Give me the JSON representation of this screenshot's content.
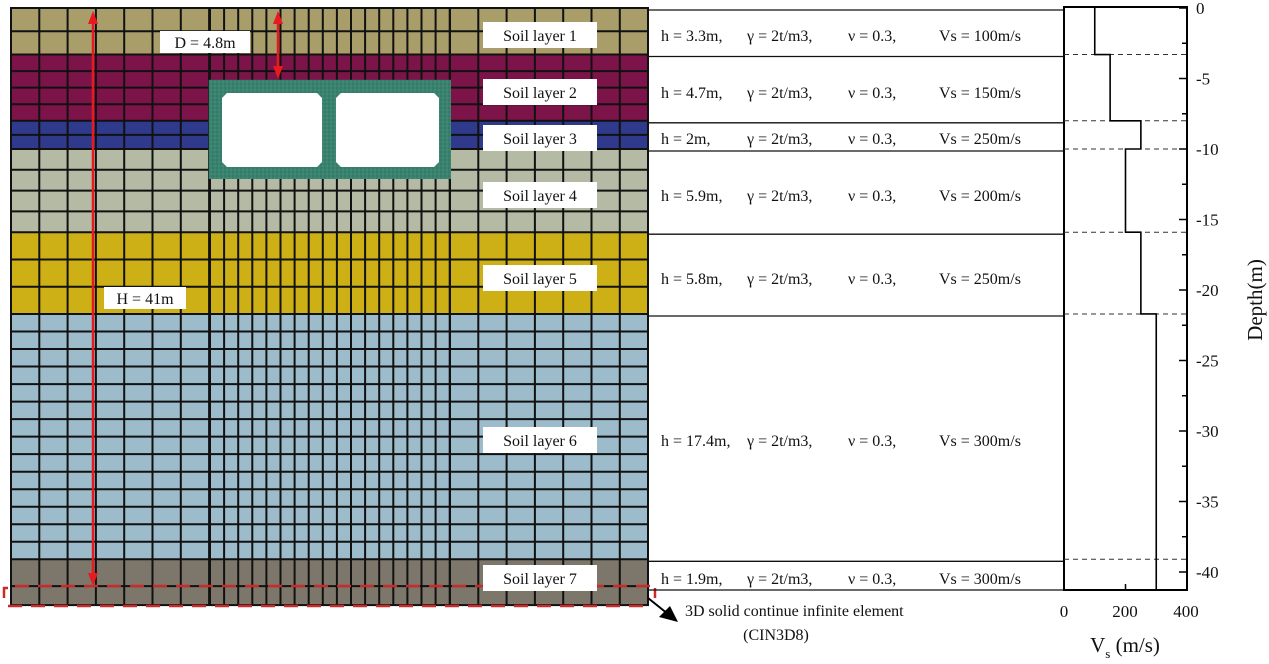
{
  "model": {
    "depth_label": "D = 4.8m",
    "height_label": "H = 41m",
    "infinite_element_label": "3D solid continue infinite element",
    "infinite_element_code": "(CIN3D8)",
    "tunnel_color": "#3f8a76",
    "annotation_color": "#e8191f",
    "dashed_box_color": "#cc2a2a"
  },
  "layers": [
    {
      "name": "Soil layer 1",
      "h": "h = 3.3m,",
      "gamma": "γ = 2t/m3,",
      "nu": "ν = 0.3,",
      "vs": "Vs = 100m/s",
      "color": "#a99e6a"
    },
    {
      "name": "Soil layer 2",
      "h": "h = 4.7m,",
      "gamma": "γ = 2t/m3,",
      "nu": "ν = 0.3,",
      "vs": "Vs = 150m/s",
      "color": "#7c1449"
    },
    {
      "name": "Soil layer 3",
      "h": "h = 2m,",
      "gamma": "γ = 2t/m3,",
      "nu": "ν = 0.3,",
      "vs": "Vs = 250m/s",
      "color": "#2f3a8c"
    },
    {
      "name": "Soil layer 4",
      "h": "h = 5.9m,",
      "gamma": "γ = 2t/m3,",
      "nu": "ν = 0.3,",
      "vs": "Vs = 200m/s",
      "color": "#b4baa4"
    },
    {
      "name": "Soil layer 5",
      "h": "h = 5.8m,",
      "gamma": "γ = 2t/m3,",
      "nu": "ν = 0.3,",
      "vs": "Vs = 250m/s",
      "color": "#cdb015"
    },
    {
      "name": "Soil layer 6",
      "h": "h = 17.4m,",
      "gamma": "γ = 2t/m3,",
      "nu": "ν = 0.3,",
      "vs": "Vs = 300m/s",
      "color": "#9dbccb"
    },
    {
      "name": "Soil layer 7",
      "h": "h = 1.9m,",
      "gamma": "γ = 2t/m3,",
      "nu": "ν = 0.3,",
      "vs": "Vs = 300m/s",
      "color": "#7d776b"
    }
  ],
  "chart_data": {
    "type": "line",
    "xlabel": "Vs (m/s)",
    "xlabel_main": "V",
    "xlabel_sub": "s",
    "xlabel_rest": " (m/s)",
    "ylabel": "Depth(m)",
    "xlim": [
      0,
      400
    ],
    "ylim": [
      -41,
      0
    ],
    "xticks": [
      "0",
      "200",
      "400"
    ],
    "yticks": [
      "0",
      "-5",
      "-10",
      "-15",
      "-20",
      "-25",
      "-30",
      "-35",
      "-40"
    ],
    "layer_boundaries": [
      -3.3,
      -8,
      -10,
      -15.9,
      -21.7,
      -39.1
    ],
    "series": [
      {
        "values": [
          {
            "depth_top": 0,
            "depth_bottom": -3.3,
            "vs": 100
          },
          {
            "depth_top": -3.3,
            "depth_bottom": -8,
            "vs": 150
          },
          {
            "depth_top": -8,
            "depth_bottom": -10,
            "vs": 250
          },
          {
            "depth_top": -10,
            "depth_bottom": -15.9,
            "vs": 200
          },
          {
            "depth_top": -15.9,
            "depth_bottom": -21.7,
            "vs": 250
          },
          {
            "depth_top": -21.7,
            "depth_bottom": -39.1,
            "vs": 300
          },
          {
            "depth_top": -39.1,
            "depth_bottom": -41,
            "vs": 300
          }
        ]
      }
    ]
  }
}
